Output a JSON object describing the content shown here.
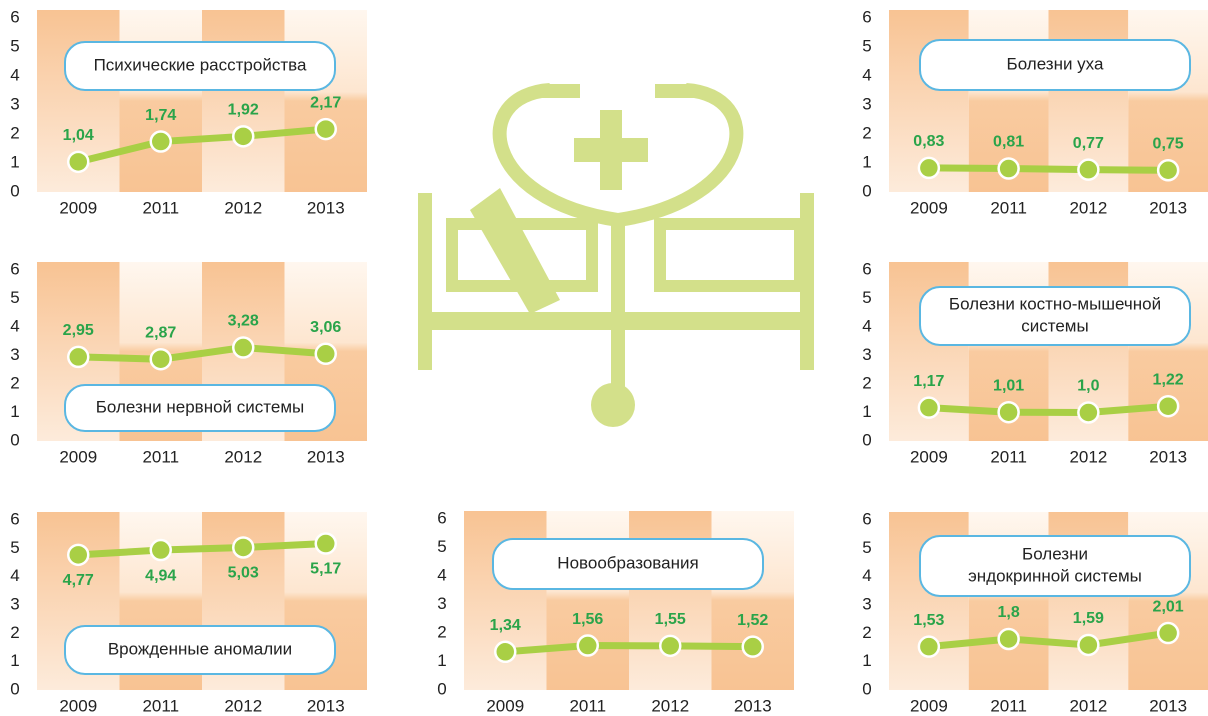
{
  "chart_data": [
    {
      "type": "line",
      "title": [
        "Психические расстройства"
      ],
      "categories": [
        "2009",
        "2011",
        "2012",
        "2013"
      ],
      "values": [
        1.04,
        1.74,
        1.92,
        2.17
      ],
      "value_labels": [
        "1,04",
        "1,74",
        "1,92",
        "2,17"
      ],
      "ylim": [
        0,
        6
      ],
      "yticks": [
        0,
        1,
        2,
        3,
        4,
        5,
        6
      ],
      "color": "#a9cf45",
      "grid": false
    },
    {
      "type": "line",
      "title": [
        "Болезни нервной системы"
      ],
      "categories": [
        "2009",
        "2011",
        "2012",
        "2013"
      ],
      "values": [
        2.95,
        2.87,
        3.28,
        3.06
      ],
      "value_labels": [
        "2,95",
        "2,87",
        "3,28",
        "3,06"
      ],
      "ylim": [
        0,
        6
      ],
      "yticks": [
        0,
        1,
        2,
        3,
        4,
        5,
        6
      ],
      "color": "#a9cf45",
      "grid": false
    },
    {
      "type": "line",
      "title": [
        "Врожденные аномалии"
      ],
      "categories": [
        "2009",
        "2011",
        "2012",
        "2013"
      ],
      "values": [
        4.77,
        4.94,
        5.03,
        5.17
      ],
      "value_labels": [
        "4,77",
        "4,94",
        "5,03",
        "5,17"
      ],
      "ylim": [
        0,
        6
      ],
      "yticks": [
        0,
        1,
        2,
        3,
        4,
        5,
        6
      ],
      "color": "#a9cf45",
      "grid": false
    },
    {
      "type": "line",
      "title": [
        "Новообразования"
      ],
      "categories": [
        "2009",
        "2011",
        "2012",
        "2013"
      ],
      "values": [
        1.34,
        1.56,
        1.55,
        1.52
      ],
      "value_labels": [
        "1,34",
        "1,56",
        "1,55",
        "1,52"
      ],
      "ylim": [
        0,
        6
      ],
      "yticks": [
        0,
        1,
        2,
        3,
        4,
        5,
        6
      ],
      "color": "#a9cf45",
      "grid": false
    },
    {
      "type": "line",
      "title": [
        "Болезни уха"
      ],
      "categories": [
        "2009",
        "2011",
        "2012",
        "2013"
      ],
      "values": [
        0.83,
        0.81,
        0.77,
        0.75
      ],
      "value_labels": [
        "0,83",
        "0,81",
        "0,77",
        "0,75"
      ],
      "ylim": [
        0,
        6
      ],
      "yticks": [
        0,
        1,
        2,
        3,
        4,
        5,
        6
      ],
      "color": "#a9cf45",
      "grid": false
    },
    {
      "type": "line",
      "title": [
        "Болезни костно-мышечной",
        "системы"
      ],
      "categories": [
        "2009",
        "2011",
        "2012",
        "2013"
      ],
      "values": [
        1.17,
        1.01,
        1.0,
        1.22
      ],
      "value_labels": [
        "1,17",
        "1,01",
        "1,0",
        "1,22"
      ],
      "ylim": [
        0,
        6
      ],
      "yticks": [
        0,
        1,
        2,
        3,
        4,
        5,
        6
      ],
      "color": "#a9cf45",
      "grid": false
    },
    {
      "type": "line",
      "title": [
        "Болезни",
        "эндокринной системы"
      ],
      "categories": [
        "2009",
        "2011",
        "2012",
        "2013"
      ],
      "values": [
        1.53,
        1.8,
        1.59,
        2.01
      ],
      "value_labels": [
        "1,53",
        "1,8",
        "1,59",
        "2,01"
      ],
      "ylim": [
        0,
        6
      ],
      "yticks": [
        0,
        1,
        2,
        3,
        4,
        5,
        6
      ],
      "color": "#a9cf45",
      "grid": false
    }
  ]
}
